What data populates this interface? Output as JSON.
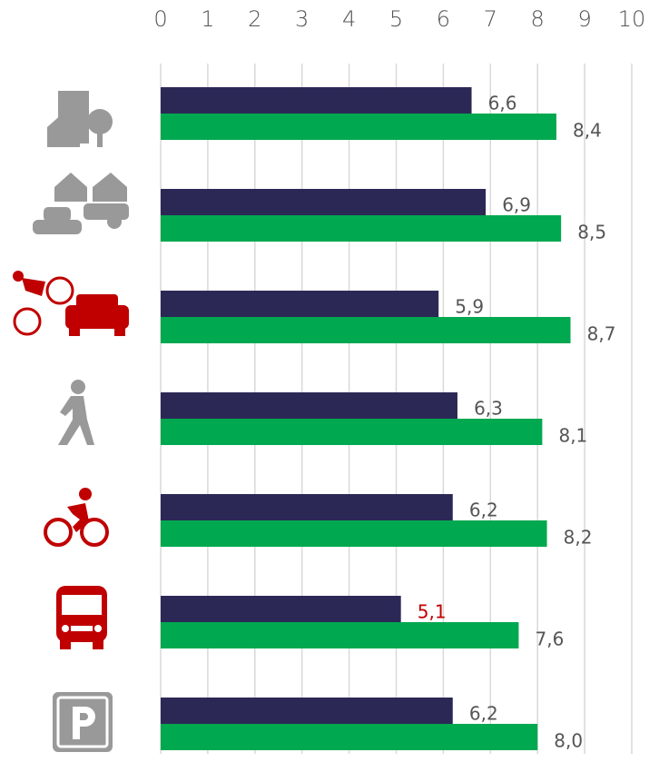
{
  "chart_data": {
    "type": "barh",
    "categories": [
      null,
      null,
      null,
      null,
      null,
      null,
      null
    ],
    "series": [
      {
        "color": "#2c2856",
        "values": [
          6.6,
          6.9,
          5.9,
          6.3,
          6.2,
          5.1,
          6.2
        ],
        "value_labels": [
          "6,6",
          "6,9",
          "5,9",
          "6,3",
          "6,2",
          "5,1",
          "6,2"
        ],
        "label_colors": [
          "#555555",
          "#555555",
          "#555555",
          "#555555",
          "#555555",
          "#c00000",
          "#555555"
        ]
      },
      {
        "color": "#00a84f",
        "values": [
          8.4,
          8.5,
          8.7,
          8.1,
          8.2,
          7.6,
          8.0
        ],
        "value_labels": [
          "8,4",
          "8,5",
          "8,7",
          "8,1",
          "8,2",
          "7,6",
          "8,0"
        ],
        "label_colors": [
          "#555555",
          "#555555",
          "#555555",
          "#555555",
          "#555555",
          "#555555",
          "#555555"
        ]
      }
    ],
    "xlim": [
      0,
      10
    ],
    "xticks": [
      0,
      1,
      2,
      3,
      4,
      5,
      6,
      7,
      8,
      9,
      10
    ],
    "grid": true
  }
}
